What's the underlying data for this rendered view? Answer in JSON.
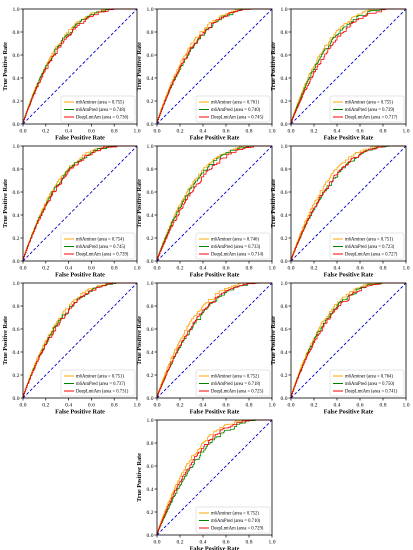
{
  "chart_data": [
    {
      "type": "line",
      "xlabel": "False Positive Rate",
      "ylabel": "True Positive Rate",
      "xlim": [
        0,
        1
      ],
      "ylim": [
        0,
        1
      ],
      "x_ticks": [
        "0.0",
        "0.2",
        "0.4",
        "0.6",
        "0.8",
        "1.0"
      ],
      "y_ticks": [
        "0.0",
        "0.2",
        "0.4",
        "0.6",
        "0.8",
        "1.0"
      ],
      "legend_position": "lower-right",
      "series": [
        {
          "name": "m6Aminer (area = 0.755)",
          "color": "#ffa500"
        },
        {
          "name": "m6AmPred (area = 0.748)",
          "color": "#008000"
        },
        {
          "name": "DeepLmtAm (area = 0.736)",
          "color": "#ff0000"
        }
      ]
    },
    {
      "type": "line",
      "xlabel": "False Positive Rate",
      "ylabel": "True Positive Rate",
      "xlim": [
        0,
        1
      ],
      "ylim": [
        0,
        1
      ],
      "x_ticks": [
        "0.0",
        "0.2",
        "0.4",
        "0.6",
        "0.8",
        "1.0"
      ],
      "y_ticks": [
        "0.0",
        "0.2",
        "0.4",
        "0.6",
        "0.8",
        "1.0"
      ],
      "legend_position": "lower-right",
      "series": [
        {
          "name": "m6Aminer (area = 0.761)",
          "color": "#ffa500"
        },
        {
          "name": "m6AmPred (area = 0.740)",
          "color": "#008000"
        },
        {
          "name": "DeepLmtAm (area = 0.745)",
          "color": "#ff0000"
        }
      ]
    },
    {
      "type": "line",
      "xlabel": "False Positive Rate",
      "ylabel": "True Positive Rate",
      "xlim": [
        0,
        1
      ],
      "ylim": [
        0,
        1
      ],
      "x_ticks": [
        "0.0",
        "0.2",
        "0.4",
        "0.6",
        "0.8",
        "1.0"
      ],
      "y_ticks": [
        "0.0",
        "0.2",
        "0.4",
        "0.6",
        "0.8",
        "1.0"
      ],
      "legend_position": "lower-right",
      "series": [
        {
          "name": "m6Aminer (area = 0.755)",
          "color": "#ffa500"
        },
        {
          "name": "m6AmPred (area = 0.739)",
          "color": "#008000"
        },
        {
          "name": "DeepLmtAm (area = 0.717)",
          "color": "#ff0000"
        }
      ]
    },
    {
      "type": "line",
      "xlabel": "False Positive Rate",
      "ylabel": "True Positive Rate",
      "xlim": [
        0,
        1
      ],
      "ylim": [
        0,
        1
      ],
      "x_ticks": [
        "0.0",
        "0.2",
        "0.4",
        "0.6",
        "0.8",
        "1.0"
      ],
      "y_ticks": [
        "0.0",
        "0.2",
        "0.4",
        "0.6",
        "0.8",
        "1.0"
      ],
      "legend_position": "lower-right",
      "series": [
        {
          "name": "m6Aminer (area = 0.754)",
          "color": "#ffa500"
        },
        {
          "name": "m6AmPred (area = 0.745)",
          "color": "#008000"
        },
        {
          "name": "DeepLmtAm (area = 0.739)",
          "color": "#ff0000"
        }
      ]
    },
    {
      "type": "line",
      "xlabel": "False Positive Rate",
      "ylabel": "True Positive Rate",
      "xlim": [
        0,
        1
      ],
      "ylim": [
        0,
        1
      ],
      "x_ticks": [
        "0.0",
        "0.2",
        "0.4",
        "0.6",
        "0.8",
        "1.0"
      ],
      "y_ticks": [
        "0.0",
        "0.2",
        "0.4",
        "0.6",
        "0.8",
        "1.0"
      ],
      "legend_position": "lower-right",
      "series": [
        {
          "name": "m6Aminer (area = 0.746)",
          "color": "#ffa500"
        },
        {
          "name": "m6AmPred (area = 0.733)",
          "color": "#008000"
        },
        {
          "name": "DeepLmtAm (area = 0.714)",
          "color": "#ff0000"
        }
      ]
    },
    {
      "type": "line",
      "xlabel": "False Positive Rate",
      "ylabel": "True Positive Rate",
      "xlim": [
        0,
        1
      ],
      "ylim": [
        0,
        1
      ],
      "x_ticks": [
        "0.0",
        "0.2",
        "0.4",
        "0.6",
        "0.8",
        "1.0"
      ],
      "y_ticks": [
        "0.0",
        "0.2",
        "0.4",
        "0.6",
        "0.8",
        "1.0"
      ],
      "legend_position": "lower-right",
      "series": [
        {
          "name": "m6Aminer (area = 0.751)",
          "color": "#ffa500"
        },
        {
          "name": "m6AmPred (area = 0.723)",
          "color": "#008000"
        },
        {
          "name": "DeepLmtAm (area = 0.727)",
          "color": "#ff0000"
        }
      ]
    },
    {
      "type": "line",
      "xlabel": "False Positive Rate",
      "ylabel": "True Positive Rate",
      "xlim": [
        0,
        1
      ],
      "ylim": [
        0,
        1
      ],
      "x_ticks": [
        "0.0",
        "0.2",
        "0.4",
        "0.6",
        "0.8",
        "1.0"
      ],
      "y_ticks": [
        "0.0",
        "0.2",
        "0.4",
        "0.6",
        "0.8",
        "1.0"
      ],
      "legend_position": "lower-right",
      "series": [
        {
          "name": "m6Aminer (area = 0.751)",
          "color": "#ffa500"
        },
        {
          "name": "m6AmPred (area = 0.737)",
          "color": "#008000"
        },
        {
          "name": "DeepLmtAm (area = 0.731)",
          "color": "#ff0000"
        }
      ]
    },
    {
      "type": "line",
      "xlabel": "False Positive Rate",
      "ylabel": "True Positive Rate",
      "xlim": [
        0,
        1
      ],
      "ylim": [
        0,
        1
      ],
      "x_ticks": [
        "0.0",
        "0.2",
        "0.4",
        "0.6",
        "0.8",
        "1.0"
      ],
      "y_ticks": [
        "0.0",
        "0.2",
        "0.4",
        "0.6",
        "0.8",
        "1.0"
      ],
      "legend_position": "lower-right",
      "series": [
        {
          "name": "m6Aminer (area = 0.752)",
          "color": "#ffa500"
        },
        {
          "name": "m6AmPred (area = 0.718)",
          "color": "#008000"
        },
        {
          "name": "DeepLmtAm (area = 0.725)",
          "color": "#ff0000"
        }
      ]
    },
    {
      "type": "line",
      "xlabel": "False Positive Rate",
      "ylabel": "True Positive Rate",
      "xlim": [
        0,
        1
      ],
      "ylim": [
        0,
        1
      ],
      "x_ticks": [
        "0.0",
        "0.2",
        "0.4",
        "0.6",
        "0.8",
        "1.0"
      ],
      "y_ticks": [
        "0.0",
        "0.2",
        "0.4",
        "0.6",
        "0.8",
        "1.0"
      ],
      "legend_position": "lower-right",
      "series": [
        {
          "name": "m6Aminer (area = 0.764)",
          "color": "#ffa500"
        },
        {
          "name": "m6AmPred (area = 0.750)",
          "color": "#008000"
        },
        {
          "name": "DeepLmtAm (area = 0.741)",
          "color": "#ff0000"
        }
      ]
    },
    {
      "type": "line",
      "xlabel": "False Positive Rate",
      "ylabel": "True Positive Rate",
      "xlim": [
        0,
        1
      ],
      "ylim": [
        0,
        1
      ],
      "x_ticks": [
        "0.0",
        "0.2",
        "0.4",
        "0.6",
        "0.8",
        "1.0"
      ],
      "y_ticks": [
        "0.0",
        "0.2",
        "0.4",
        "0.6",
        "0.8",
        "1.0"
      ],
      "legend_position": "lower-right",
      "series": [
        {
          "name": "m6Aminer (area = 0.752)",
          "color": "#ffa500"
        },
        {
          "name": "m6AmPred (area = 0.710)",
          "color": "#008000"
        },
        {
          "name": "DeepLmtAm (area = 0.729)",
          "color": "#ff0000"
        }
      ]
    }
  ],
  "diagonal_color": "#0000cd"
}
